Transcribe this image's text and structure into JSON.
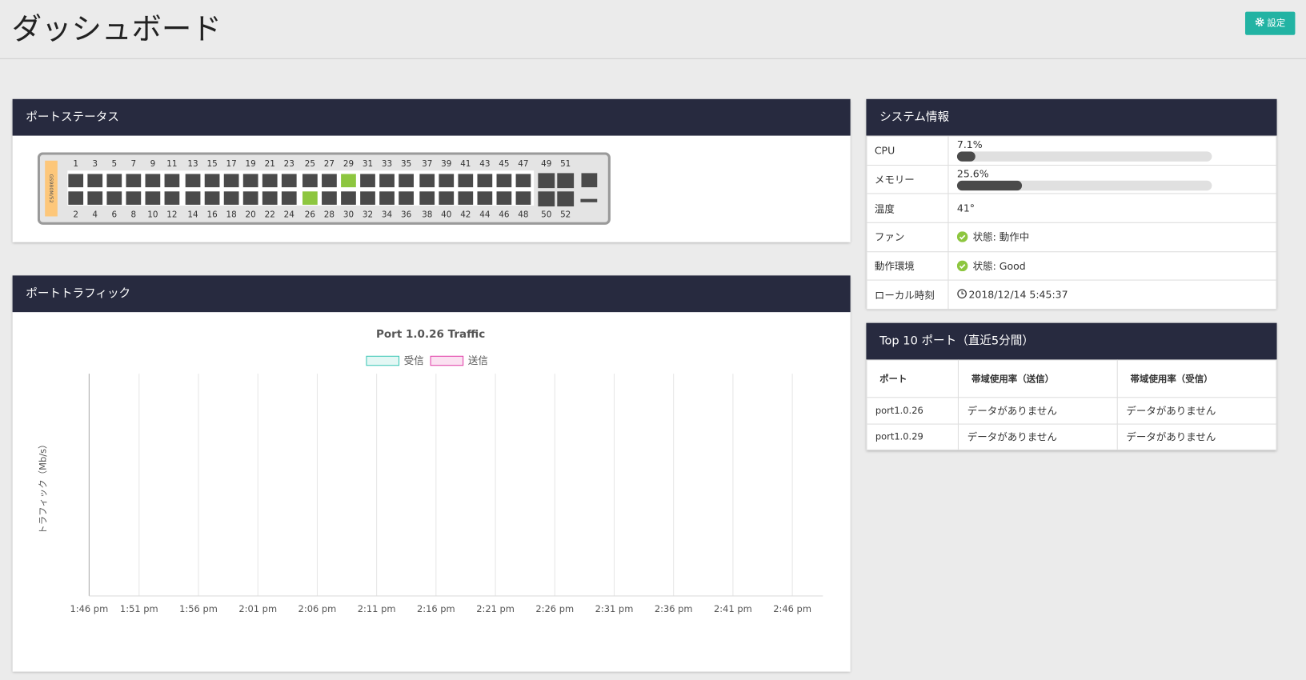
{
  "header": {
    "title": "ダッシュボード",
    "settings_button": "設定"
  },
  "port_status": {
    "title": "ポートステータス",
    "model": "GS980M/52",
    "top_ports": [
      1,
      3,
      5,
      7,
      9,
      11,
      13,
      15,
      17,
      19,
      21,
      23,
      25,
      27,
      29,
      31,
      33,
      35,
      37,
      39,
      41,
      43,
      45,
      47,
      49,
      51
    ],
    "bottom_ports": [
      2,
      4,
      6,
      8,
      10,
      12,
      14,
      16,
      18,
      20,
      22,
      24,
      26,
      28,
      30,
      32,
      34,
      36,
      38,
      40,
      42,
      44,
      46,
      48,
      50,
      52
    ],
    "active_ports": [
      26,
      29
    ],
    "port_color": "#4a4a4a",
    "active_color": "#8dc63f"
  },
  "port_traffic": {
    "title": "ポートトラフィック"
  },
  "chart_data": {
    "type": "line",
    "title": "Port 1.0.26 Traffic",
    "y_label": "トラフィック（Mb/s）",
    "grid": true,
    "categories": [
      "1:46 pm",
      "1:51 pm",
      "1:56 pm",
      "2:01 pm",
      "2:06 pm",
      "2:11 pm",
      "2:16 pm",
      "2:21 pm",
      "2:26 pm",
      "2:31 pm",
      "2:36 pm",
      "2:41 pm",
      "2:46 pm"
    ],
    "series": [
      {
        "name": "受信",
        "color": "#3cc7b7",
        "fill": "#e3f7f4",
        "values": [
          null,
          null,
          null,
          null,
          null,
          null,
          null,
          null,
          null,
          null,
          null,
          null,
          null
        ]
      },
      {
        "name": "送信",
        "color": "#e040a8",
        "fill": "#fbe1f1",
        "values": [
          null,
          null,
          null,
          null,
          null,
          null,
          null,
          null,
          null,
          null,
          null,
          null,
          null
        ]
      }
    ]
  },
  "system_info": {
    "title": "システム情報",
    "rows": [
      {
        "label": "CPU",
        "value": 7.1,
        "text": "7.1%"
      },
      {
        "label": "メモリー",
        "value": 25.6,
        "text": "25.6%"
      },
      {
        "label": "温度",
        "text": "41°"
      },
      {
        "label": "ファン",
        "status": "状態: 動作中"
      },
      {
        "label": "動作環境",
        "status": "状態: Good"
      },
      {
        "label": "ローカル時刻",
        "clock": "2018/12/14 5:45:37"
      }
    ]
  },
  "top_ports": {
    "title": "Top 10 ポート（直近5分間）",
    "columns": [
      "ポート",
      "帯域使用率（送信）",
      "帯域使用率（受信）"
    ],
    "rows": [
      [
        "port1.0.26",
        "データがありません",
        "データがありません"
      ],
      [
        "port1.0.29",
        "データがありません",
        "データがありません"
      ]
    ]
  }
}
